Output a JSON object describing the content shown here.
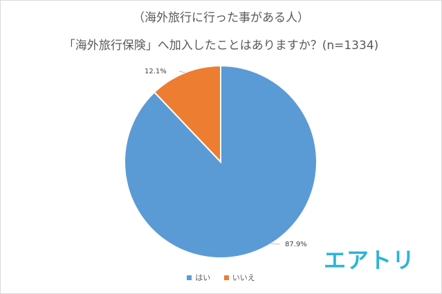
{
  "chart_data": {
    "type": "pie",
    "title": "（海外旅行に行った事がある人）",
    "subtitle": "「海外旅行保険」へ加入したことはありますか？(n=1334)",
    "categories": [
      "はい",
      "いいえ"
    ],
    "values": [
      87.9,
      12.1
    ],
    "data_labels": [
      "87.9%",
      "12.1%"
    ],
    "colors": [
      "#5B9BD5",
      "#ED7D31"
    ],
    "legend_position": "bottom"
  },
  "brand": {
    "logo_text": "エアトリ",
    "logo_color": "#2bb5d8"
  }
}
